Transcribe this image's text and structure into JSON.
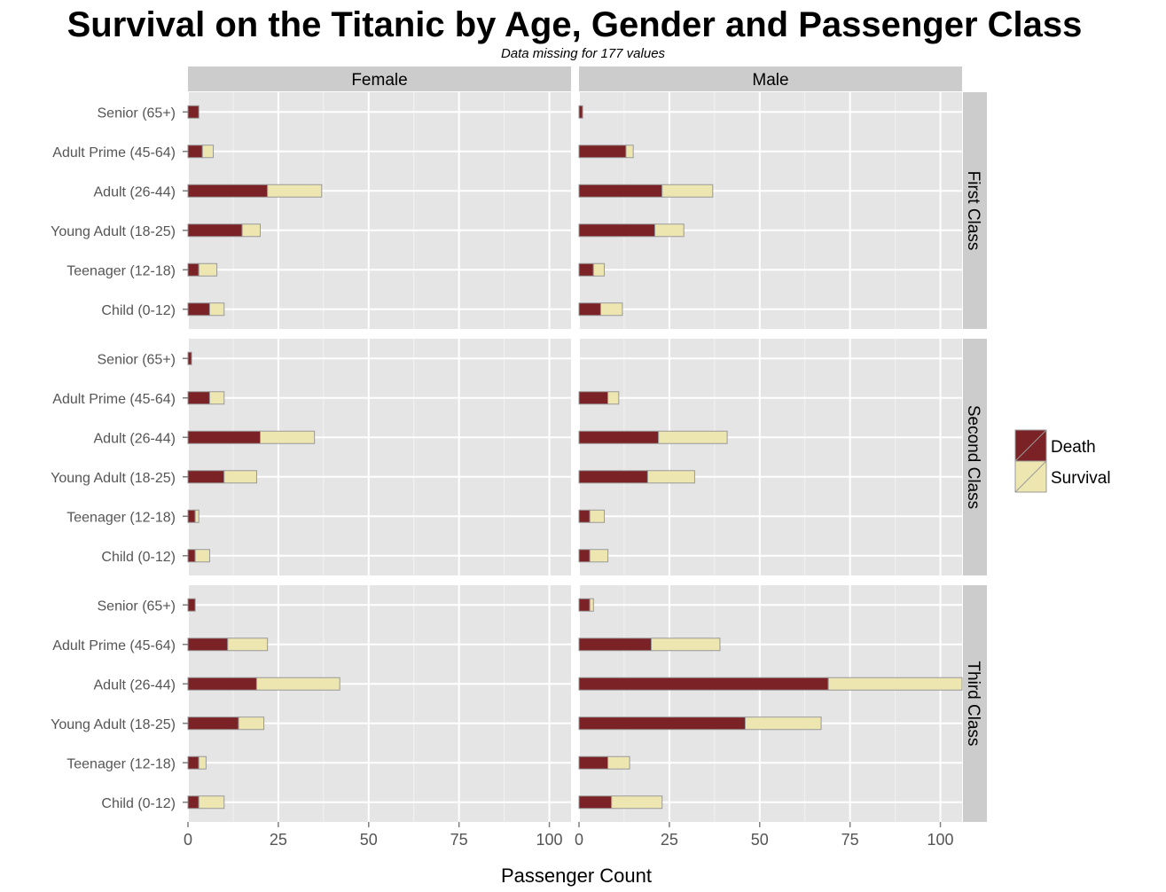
{
  "chart_data": {
    "type": "bar",
    "title": "Survival on the Titanic by Age, Gender and Passenger Class",
    "subtitle": "Data missing for 177 values",
    "xlabel": "Passenger Count",
    "ylabel": "",
    "xlim": [
      0,
      106
    ],
    "xticks": [
      0,
      25,
      50,
      75,
      100
    ],
    "stacked": true,
    "grid": true,
    "legend_position": "right",
    "columns": [
      "Female",
      "Male"
    ],
    "rows": [
      "First Class",
      "Second Class",
      "Third Class"
    ],
    "categories": [
      "Senior (65+)",
      "Adult Prime (45-64)",
      "Adult (26-44)",
      "Young Adult (18-25)",
      "Teenager (12-18)",
      "Child (0-12)"
    ],
    "series": [
      {
        "name": "Death",
        "color": "#7b2226"
      },
      {
        "name": "Survival",
        "color": "#eee6b0"
      }
    ],
    "panels": [
      {
        "column": "Female",
        "row": "First Class",
        "death": [
          3,
          4,
          22,
          15,
          3,
          6
        ],
        "survival": [
          0,
          3,
          15,
          5,
          5,
          4
        ]
      },
      {
        "column": "Male",
        "row": "First Class",
        "death": [
          1,
          13,
          23,
          21,
          4,
          6
        ],
        "survival": [
          0,
          2,
          14,
          8,
          3,
          6
        ]
      },
      {
        "column": "Female",
        "row": "Second Class",
        "death": [
          1,
          6,
          20,
          10,
          2,
          2
        ],
        "survival": [
          0,
          4,
          15,
          9,
          1,
          4
        ]
      },
      {
        "column": "Male",
        "row": "Second Class",
        "death": [
          0,
          8,
          22,
          19,
          3,
          3
        ],
        "survival": [
          0,
          3,
          19,
          13,
          4,
          5
        ]
      },
      {
        "column": "Female",
        "row": "Third Class",
        "death": [
          2,
          11,
          19,
          14,
          3,
          3
        ],
        "survival": [
          0,
          11,
          23,
          7,
          2,
          7
        ]
      },
      {
        "column": "Male",
        "row": "Third Class",
        "death": [
          3,
          20,
          69,
          46,
          8,
          9
        ],
        "survival": [
          1,
          19,
          37,
          21,
          6,
          14
        ]
      }
    ]
  }
}
